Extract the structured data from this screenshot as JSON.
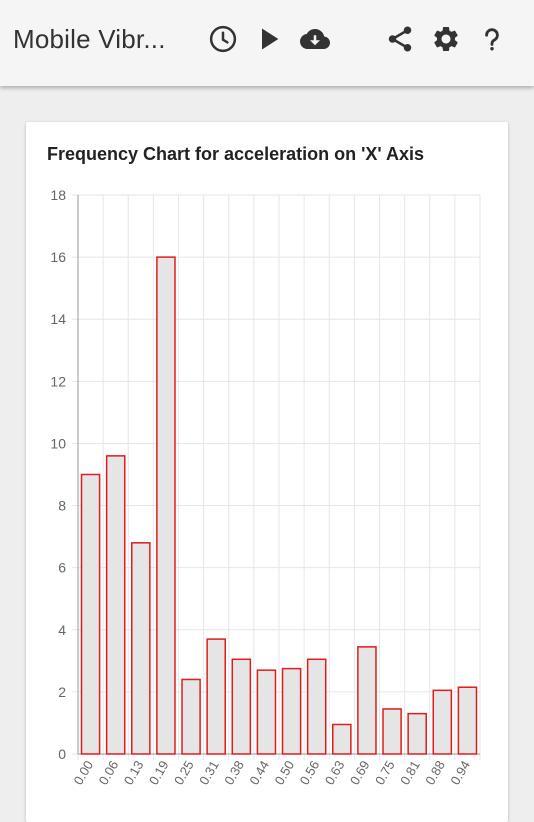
{
  "appbar": {
    "title": "Mobile Vibr...",
    "icons": [
      "history-icon",
      "play-icon",
      "cloud-download-icon",
      "share-icon",
      "settings-icon",
      "help-icon"
    ]
  },
  "chart_data": {
    "type": "bar",
    "title": "Frequency Chart for acceleration on 'X' Axis",
    "categories": [
      "0.00",
      "0.06",
      "0.13",
      "0.19",
      "0.25",
      "0.31",
      "0.38",
      "0.44",
      "0.50",
      "0.56",
      "0.63",
      "0.69",
      "0.75",
      "0.81",
      "0.88",
      "0.94"
    ],
    "values": [
      9.0,
      9.6,
      6.8,
      16.0,
      2.4,
      3.7,
      3.05,
      2.7,
      2.75,
      3.05,
      0.95,
      3.45,
      1.45,
      1.3,
      2.05,
      2.15
    ],
    "ylim": [
      0,
      18
    ],
    "yticks": [
      0,
      2,
      4,
      6,
      8,
      10,
      12,
      14,
      16,
      18
    ],
    "grid": true,
    "colors": {
      "bar_fill": "#e5e5e5",
      "bar_stroke": "#e31b1b",
      "grid": "#e6e6e6",
      "axis": "#999999",
      "tick_text": "#666666"
    }
  }
}
